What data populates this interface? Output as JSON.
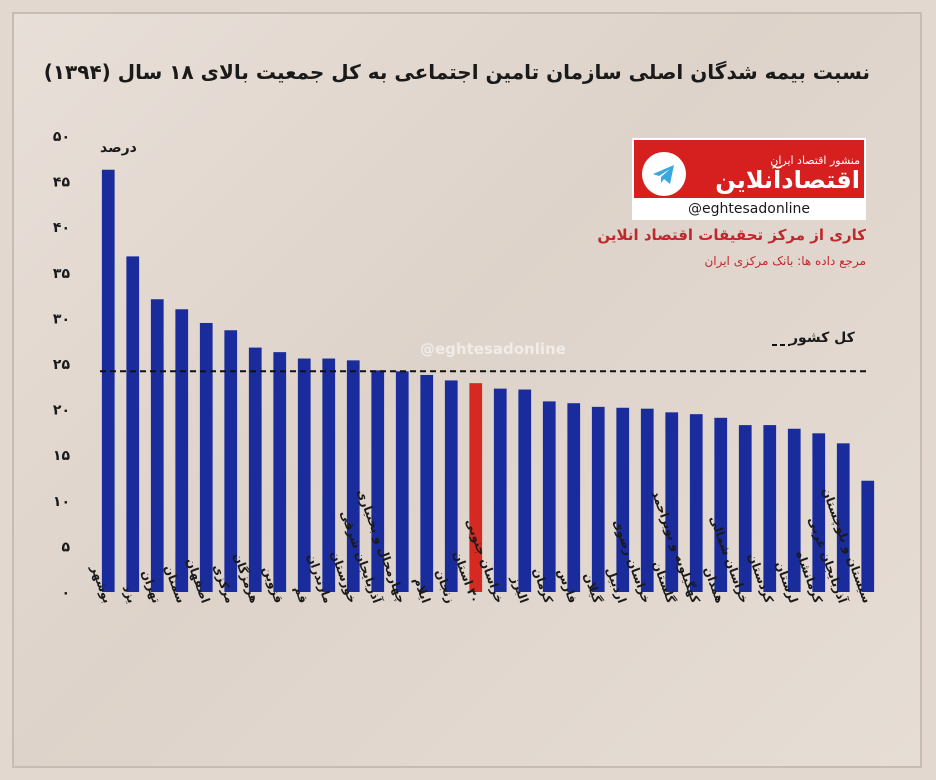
{
  "header": {
    "title": "نسبت بیمه شدگان اصلی سازمان تامین اجتماعی به کل جمعیت بالای ۱۸ سال (۱۳۹۴)"
  },
  "brand": {
    "top_text": "منشور اقتصاد ایران",
    "name": "اقتصادآنلاین",
    "handle": "@eghtesadonline",
    "watermark": "@eghtesadonline"
  },
  "credit": {
    "line1": "کاری از مرکز تحقیقات اقتصاد انلاین",
    "line2": "مرجع داده ها: بانک مرکزی ایران"
  },
  "chart_data": {
    "type": "bar",
    "unit_label": "درصد",
    "ylim": [
      0,
      50
    ],
    "yticks": [
      "۰",
      "۵",
      "۱۰",
      "۱۵",
      "۲۰",
      "۲۵",
      "۳۰",
      "۳۵",
      "۴۰",
      "۴۵",
      "۵۰"
    ],
    "categories": [
      "بوشهر",
      "یزد",
      "تهران",
      "سمنان",
      "اصفهان",
      "مرکزی",
      "هرمزگان",
      "قزوین",
      "قم",
      "مازندران",
      "خوزستان",
      "آذربایجان شرقی",
      "چهارمحال و بختیاری",
      "ایلام",
      "زنجان",
      "۳۰ استان",
      "خراسان جنوبی",
      "البرز",
      "کرمان",
      "فارس",
      "گیلان",
      "اردبیل",
      "خراسان رضوی",
      "گلستان",
      "کهگیلویه و بویراحمد",
      "همدان",
      "خراسان شمالی",
      "کردستان",
      "لرستان",
      "کرمانشاه",
      "آذربایجان غربی",
      "سیستان و بلوچستان"
    ],
    "values": [
      46.3,
      36.8,
      32.1,
      31.0,
      29.5,
      28.7,
      26.8,
      26.3,
      25.6,
      25.6,
      25.4,
      24.3,
      24.2,
      23.8,
      23.2,
      22.9,
      22.3,
      22.2,
      20.9,
      20.7,
      20.3,
      20.2,
      20.1,
      19.7,
      19.5,
      19.1,
      18.3,
      18.3,
      17.9,
      17.4,
      16.3,
      12.2
    ],
    "highlight_index": 15,
    "bar_color": "#1a2b9c",
    "highlight_color": "#d42a22",
    "reference": {
      "label": "کل کشور",
      "value": 24.2,
      "style": "dashed"
    },
    "grid": false
  }
}
